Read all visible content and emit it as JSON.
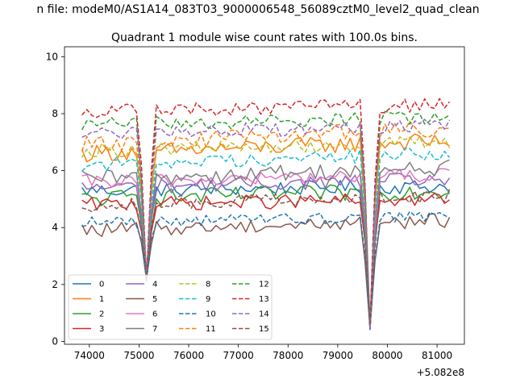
{
  "suptitle": "n file: modeM0/AS1A14_083T03_9000006548_56089cztM0_level2_quad_clean",
  "chart_data": {
    "type": "line",
    "title": "Quadrant 1 module wise count rates with 100.0s bins.",
    "xlabel": "",
    "ylabel": "",
    "x_offset_label": "+5.082e8",
    "xlim": [
      73500,
      81550
    ],
    "ylim": [
      -0.1,
      10.35
    ],
    "xticks": [
      74000,
      75000,
      76000,
      77000,
      78000,
      79000,
      80000,
      81000
    ],
    "xtick_labels": [
      "74000",
      "75000",
      "76000",
      "77000",
      "78000",
      "79000",
      "80000",
      "81000"
    ],
    "yticks": [
      0,
      2,
      4,
      6,
      8,
      10
    ],
    "ytick_labels": [
      "0",
      "2",
      "4",
      "6",
      "8",
      "10"
    ],
    "x": {
      "start": 73850,
      "step": 100,
      "count": 75
    },
    "dips": [
      {
        "x": 75150,
        "level": 2.2
      },
      {
        "x": 79650,
        "level": 0.5
      }
    ],
    "legend": {
      "position": "lower-left",
      "columns": 4
    },
    "series": [
      {
        "name": "0",
        "color": "#1f77b4",
        "dash": "solid",
        "base": 5.3,
        "trend": 0.15,
        "noise": 0.25
      },
      {
        "name": "1",
        "color": "#ff7f0e",
        "dash": "solid",
        "base": 6.6,
        "trend": 0.45,
        "noise": 0.3
      },
      {
        "name": "2",
        "color": "#2ca02c",
        "dash": "solid",
        "base": 5.0,
        "trend": 0.3,
        "noise": 0.3
      },
      {
        "name": "3",
        "color": "#d62728",
        "dash": "solid",
        "base": 4.8,
        "trend": 0.2,
        "noise": 0.25
      },
      {
        "name": "4",
        "color": "#9467bd",
        "dash": "solid",
        "base": 5.4,
        "trend": 0.3,
        "noise": 0.25
      },
      {
        "name": "5",
        "color": "#8c564b",
        "dash": "solid",
        "base": 3.9,
        "trend": 0.35,
        "noise": 0.25
      },
      {
        "name": "6",
        "color": "#e377c2",
        "dash": "solid",
        "base": 5.6,
        "trend": 0.25,
        "noise": 0.25
      },
      {
        "name": "7",
        "color": "#7f7f7f",
        "dash": "solid",
        "base": 5.7,
        "trend": 0.4,
        "noise": 0.3
      },
      {
        "name": "8",
        "color": "#bcbd22",
        "dash": "dashed",
        "base": 6.7,
        "trend": 0.3,
        "noise": 0.25
      },
      {
        "name": "9",
        "color": "#17becf",
        "dash": "dashed",
        "base": 6.2,
        "trend": 0.4,
        "noise": 0.25
      },
      {
        "name": "10",
        "color": "#1f77b4",
        "dash": "dashed",
        "base": 4.2,
        "trend": 0.2,
        "noise": 0.2
      },
      {
        "name": "11",
        "color": "#ff7f0e",
        "dash": "dashed",
        "base": 6.9,
        "trend": 0.6,
        "noise": 0.3
      },
      {
        "name": "12",
        "color": "#2ca02c",
        "dash": "dashed",
        "base": 7.6,
        "trend": 0.3,
        "noise": 0.25
      },
      {
        "name": "13",
        "color": "#d62728",
        "dash": "dashed",
        "base": 8.1,
        "trend": 0.2,
        "noise": 0.25
      },
      {
        "name": "14",
        "color": "#9467bd",
        "dash": "dashed",
        "base": 7.3,
        "trend": 0.3,
        "noise": 0.25
      },
      {
        "name": "15",
        "color": "#8c564b",
        "dash": "dashed",
        "base": 4.8,
        "trend": 0.3,
        "noise": 0.25
      }
    ]
  }
}
